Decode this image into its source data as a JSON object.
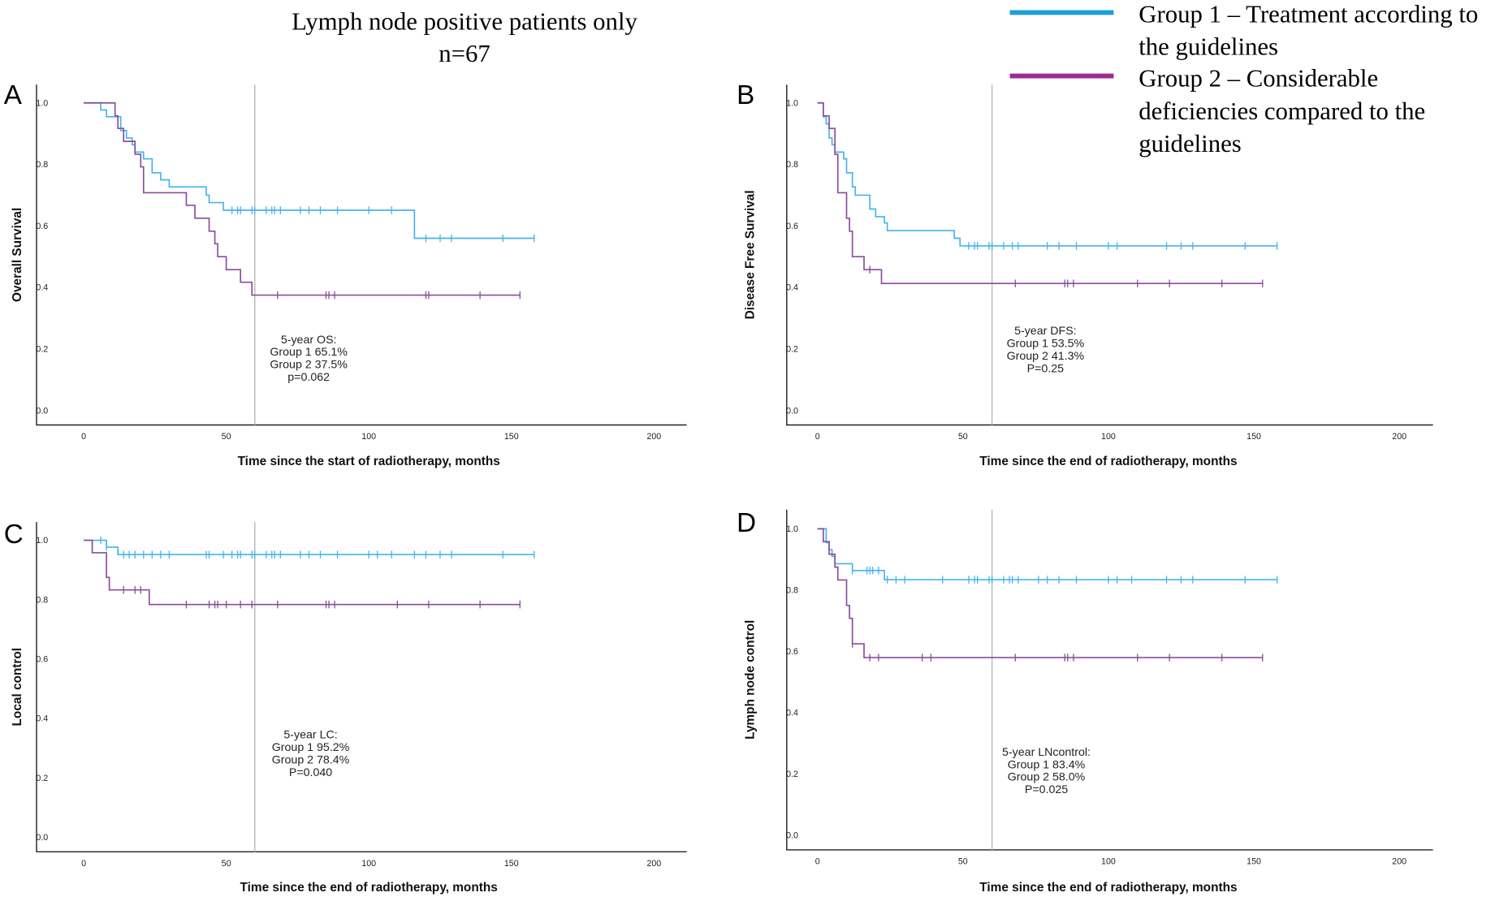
{
  "title": {
    "line1": "Lymph node positive patients only",
    "line2": "n=67"
  },
  "legend": [
    {
      "label_lines": [
        "Group 1 – Treatment according to",
        "the guidelines"
      ],
      "color": "#1f9fd8"
    },
    {
      "label_lines": [
        "Group 2 – Considerable",
        "deficiencies compared to the",
        "guidelines"
      ],
      "color": "#a0298f"
    }
  ],
  "colors": {
    "group1_curve": "#45b3ee",
    "group2_curve": "#8b4c9e",
    "reference_line": "#bdbdbd"
  },
  "chart_data": [
    {
      "type": "line",
      "panel": "A",
      "ylabel": "Overall Survival",
      "xlabel": "Time since the start of radiotherapy, months",
      "xlim": [
        0,
        200
      ],
      "ylim": [
        0,
        1
      ],
      "xticks": [
        "0",
        "50",
        "100",
        "150",
        "200"
      ],
      "yticks": [
        "0.0",
        "0.2",
        "0.4",
        "0.6",
        "0.8",
        "1.0"
      ],
      "reference_x": 60,
      "annotation": [
        "5-year OS:",
        "Group 1   65.1%",
        "Group 2   37.5%",
        "p=0.062"
      ],
      "series": [
        {
          "name": "Group 1",
          "end": 158,
          "steps": [
            [
              0,
              1
            ],
            [
              6,
              0.977
            ],
            [
              8,
              0.955
            ],
            [
              13,
              0.91
            ],
            [
              15,
              0.886
            ],
            [
              17,
              0.864
            ],
            [
              18,
              0.84
            ],
            [
              21,
              0.818
            ],
            [
              24,
              0.773
            ],
            [
              27,
              0.75
            ],
            [
              30,
              0.727
            ],
            [
              43,
              0.7
            ],
            [
              44,
              0.676
            ],
            [
              49,
              0.651
            ],
            [
              116,
              0.56
            ]
          ],
          "censored": [
            52,
            54,
            55,
            59,
            60,
            64,
            66,
            67,
            69,
            76,
            79,
            83,
            89,
            100,
            108,
            120,
            125,
            129,
            147,
            158
          ]
        },
        {
          "name": "Group 2",
          "end": 153,
          "steps": [
            [
              0,
              1
            ],
            [
              11,
              0.958
            ],
            [
              12,
              0.917
            ],
            [
              14,
              0.875
            ],
            [
              18,
              0.833
            ],
            [
              20,
              0.792
            ],
            [
              21,
              0.708
            ],
            [
              36,
              0.667
            ],
            [
              39,
              0.625
            ],
            [
              44,
              0.583
            ],
            [
              46,
              0.542
            ],
            [
              47,
              0.5
            ],
            [
              50,
              0.458
            ],
            [
              55,
              0.417
            ],
            [
              59,
              0.375
            ]
          ],
          "censored": [
            68,
            85,
            86,
            88,
            120,
            121,
            139,
            153
          ]
        }
      ]
    },
    {
      "type": "line",
      "panel": "B",
      "ylabel": "Disease Free Survival",
      "xlabel": "Time since the end of radiotherapy, months",
      "xlim": [
        0,
        200
      ],
      "ylim": [
        0,
        1
      ],
      "xticks": [
        "0",
        "50",
        "100",
        "150",
        "200"
      ],
      "yticks": [
        "0.0",
        "0.2",
        "0.4",
        "0.6",
        "0.8",
        "1.0"
      ],
      "reference_x": 60,
      "annotation": [
        "5-year DFS:",
        "Group 1   53.5%",
        "Group 2   41.3%",
        "P=0.25"
      ],
      "series": [
        {
          "name": "Group 1",
          "end": 158,
          "steps": [
            [
              0,
              1
            ],
            [
              2,
              0.955
            ],
            [
              3,
              0.932
            ],
            [
              4,
              0.886
            ],
            [
              5,
              0.864
            ],
            [
              6,
              0.84
            ],
            [
              9,
              0.818
            ],
            [
              10,
              0.773
            ],
            [
              12,
              0.727
            ],
            [
              13,
              0.7
            ],
            [
              18,
              0.655
            ],
            [
              20,
              0.63
            ],
            [
              23,
              0.61
            ],
            [
              24,
              0.585
            ],
            [
              47,
              0.56
            ],
            [
              49,
              0.535
            ]
          ],
          "censored": [
            52,
            54,
            55,
            59,
            60,
            64,
            67,
            69,
            79,
            83,
            89,
            100,
            103,
            120,
            125,
            129,
            147,
            158
          ]
        },
        {
          "name": "Group 2",
          "end": 153,
          "steps": [
            [
              0,
              1
            ],
            [
              2,
              0.958
            ],
            [
              4,
              0.917
            ],
            [
              6,
              0.833
            ],
            [
              7,
              0.708
            ],
            [
              10,
              0.625
            ],
            [
              11,
              0.583
            ],
            [
              12,
              0.5
            ],
            [
              16,
              0.458
            ],
            [
              22,
              0.413
            ]
          ],
          "censored": [
            18,
            68,
            85,
            86,
            88,
            110,
            121,
            139,
            153
          ]
        }
      ]
    },
    {
      "type": "line",
      "panel": "C",
      "ylabel": "Local control",
      "xlabel": "Time since the end of radiotherapy, months",
      "xlim": [
        0,
        200
      ],
      "ylim": [
        0,
        1
      ],
      "xticks": [
        "0",
        "50",
        "100",
        "150",
        "200"
      ],
      "yticks": [
        "0.0",
        "0.2",
        "0.4",
        "0.6",
        "0.8",
        "1.0"
      ],
      "reference_x": 60,
      "annotation": [
        "5-year LC:",
        "Group 1   95.2%",
        "Group 2   78.4%",
        "P=0.040"
      ],
      "series": [
        {
          "name": "Group 1",
          "end": 158,
          "steps": [
            [
              0,
              1
            ],
            [
              8,
              0.977
            ],
            [
              12,
              0.952
            ]
          ],
          "censored": [
            6,
            8,
            14,
            16,
            18,
            21,
            24,
            27,
            30,
            43,
            44,
            49,
            52,
            54,
            55,
            59,
            60,
            64,
            66,
            67,
            69,
            76,
            79,
            83,
            89,
            100,
            103,
            108,
            116,
            120,
            125,
            129,
            147,
            158
          ]
        },
        {
          "name": "Group 2",
          "end": 153,
          "steps": [
            [
              0,
              1
            ],
            [
              3,
              0.958
            ],
            [
              8,
              0.875
            ],
            [
              9,
              0.833
            ],
            [
              23,
              0.784
            ]
          ],
          "censored": [
            14,
            18,
            20,
            36,
            44,
            46,
            47,
            50,
            55,
            59,
            68,
            85,
            86,
            88,
            110,
            121,
            139,
            153
          ]
        }
      ]
    },
    {
      "type": "line",
      "panel": "D",
      "ylabel": "Lymph node control",
      "xlabel": "Time since the end of radiotherapy, months",
      "xlim": [
        0,
        200
      ],
      "ylim": [
        0,
        1
      ],
      "xticks": [
        "0",
        "50",
        "100",
        "150",
        "200"
      ],
      "yticks": [
        "0.0",
        "0.2",
        "0.4",
        "0.6",
        "0.8",
        "1.0"
      ],
      "reference_x": 60,
      "annotation": [
        "5-year LNcontrol:",
        "Group 1   83.4%",
        "Group 2   58.0%",
        "P=0.025"
      ],
      "series": [
        {
          "name": "Group 1",
          "end": 158,
          "steps": [
            [
              0,
              1
            ],
            [
              3,
              0.955
            ],
            [
              4,
              0.932
            ],
            [
              5,
              0.91
            ],
            [
              6,
              0.886
            ],
            [
              12,
              0.864
            ],
            [
              23,
              0.834
            ]
          ],
          "censored": [
            12,
            17,
            18,
            19,
            21,
            24,
            27,
            30,
            43,
            52,
            54,
            55,
            59,
            60,
            64,
            66,
            67,
            69,
            76,
            79,
            83,
            89,
            100,
            103,
            108,
            120,
            125,
            129,
            147,
            158
          ]
        },
        {
          "name": "Group 2",
          "end": 153,
          "steps": [
            [
              0,
              1
            ],
            [
              2,
              0.958
            ],
            [
              4,
              0.917
            ],
            [
              6,
              0.875
            ],
            [
              7,
              0.833
            ],
            [
              10,
              0.75
            ],
            [
              11,
              0.708
            ],
            [
              12,
              0.625
            ],
            [
              16,
              0.58
            ]
          ],
          "censored": [
            12,
            18,
            21,
            36,
            39,
            68,
            85,
            86,
            88,
            110,
            121,
            139,
            153
          ]
        }
      ]
    }
  ]
}
